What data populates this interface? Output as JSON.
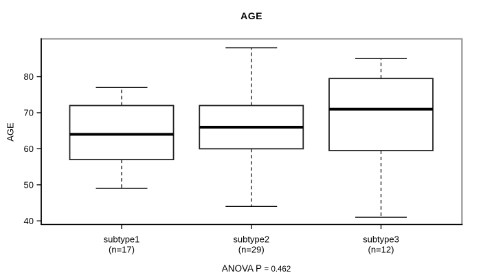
{
  "chart_data": {
    "type": "boxplot",
    "title": "AGE",
    "xlabel": "",
    "ylabel": "AGE",
    "ylim": [
      39,
      90.5
    ],
    "yticks": [
      40,
      50,
      60,
      70,
      80
    ],
    "grid": false,
    "legend": null,
    "annotation": "ANOVA P = 0.462",
    "annotation_prefix": "ANOVA P ",
    "annotation_value": "= 0.462",
    "groups": [
      {
        "label": "subtype1",
        "sublabel": "(n=17)",
        "n": 17,
        "whisker_low": 49,
        "q1": 57,
        "median": 64,
        "q3": 72,
        "whisker_high": 77
      },
      {
        "label": "subtype2",
        "sublabel": "(n=29)",
        "n": 29,
        "whisker_low": 44,
        "q1": 60,
        "median": 66,
        "q3": 72,
        "whisker_high": 88
      },
      {
        "label": "subtype3",
        "sublabel": "(n=12)",
        "n": 12,
        "whisker_low": 41,
        "q1": 59.5,
        "median": 71,
        "q3": 79.5,
        "whisker_high": 85
      }
    ],
    "colors": {
      "box_stroke": "#222222",
      "median": "#000000",
      "whisker": "#000000",
      "axis": "#000000",
      "border_shadow": "#8c8c8c",
      "background": "#ffffff"
    }
  }
}
